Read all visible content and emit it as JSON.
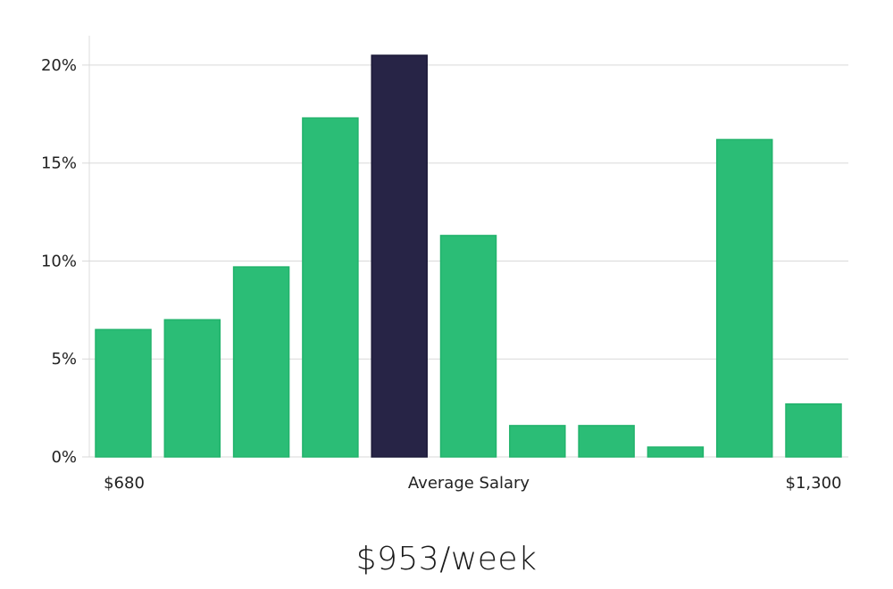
{
  "chart_data": {
    "type": "bar",
    "title": "",
    "xlabel": "",
    "ylabel": "",
    "ylim": [
      0,
      21.5
    ],
    "yticks": [
      0,
      5,
      10,
      15,
      20
    ],
    "ytick_labels": [
      "0%",
      "5%",
      "10%",
      "15%",
      "20%"
    ],
    "grid": true,
    "values": [
      6.5,
      7.0,
      9.7,
      17.3,
      20.5,
      11.3,
      1.6,
      1.6,
      0.5,
      16.2,
      2.7
    ],
    "highlight_index": 4,
    "x_axis_labels": {
      "left": "$680",
      "center": "Average Salary",
      "right": "$1,300"
    },
    "colors": {
      "bar": "#2bbd76",
      "bar_stroke": "#22b36c",
      "highlight": "#272446",
      "highlight_stroke": "#1c1a38",
      "grid": "#d9d9d9",
      "axis": "#dcdcdc"
    }
  },
  "headline": "$953/week"
}
